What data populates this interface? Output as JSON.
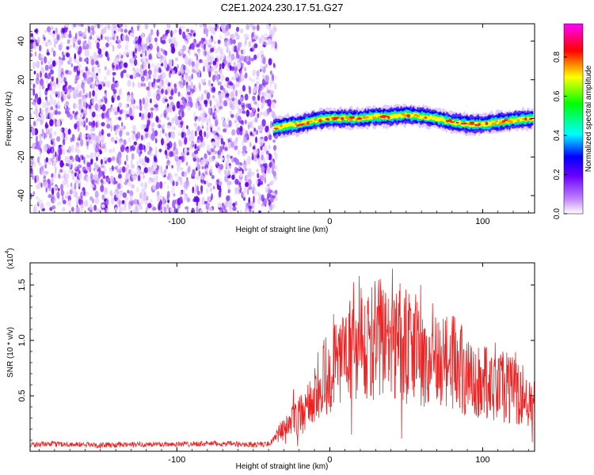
{
  "title": "C2E1.2024.230.17.51.G27",
  "chart_data": [
    {
      "type": "heatmap",
      "xlabel": "Height of straight line (km)",
      "ylabel": "Frequency (Hz)",
      "xlim": [
        -196,
        134
      ],
      "ylim": [
        -49,
        49
      ],
      "x_ticks": [
        -100,
        0,
        100
      ],
      "y_ticks": [
        -40,
        -20,
        0,
        20,
        40
      ],
      "colorbar": {
        "label": "Normalized spectral amplitude",
        "range": [
          0.0,
          0.97
        ],
        "ticks": [
          "0.0",
          "0.2",
          "0.4",
          "0.6",
          "0.8"
        ],
        "colors": [
          "#ffffff",
          "#8a00ff",
          "#0000ff",
          "#00ffff",
          "#00ff00",
          "#ffff00",
          "#ff0000",
          "#ff00ff"
        ]
      },
      "noise_region": {
        "x_start": -196,
        "x_end": -37,
        "y_start": -49,
        "y_end": 49
      },
      "signal_band": {
        "x": [
          -37,
          -30,
          -20,
          -10,
          0,
          10,
          20,
          30,
          40,
          50,
          60,
          70,
          80,
          90,
          100,
          110,
          120,
          134
        ],
        "center_hz": [
          -5,
          -4,
          -3,
          -1,
          0,
          0,
          0,
          1,
          1,
          2,
          1,
          0,
          -2,
          -3,
          -3,
          -2,
          -1,
          0
        ],
        "half_width_hz": 3
      }
    },
    {
      "type": "line",
      "xlabel": "Height of straight line (km)",
      "ylabel": "SNR (10 * v/v)",
      "y_multiplier": "(x10",
      "y_multiplier_exp": "4",
      "xlim": [
        -196,
        134
      ],
      "ylim": [
        0,
        17000
      ],
      "x_ticks": [
        -100,
        0,
        100
      ],
      "y_ticks": [
        5000,
        10000,
        15000
      ],
      "y_tick_labels": [
        "0.5",
        "1.0",
        "1.5"
      ],
      "series": [
        {
          "color": "#ee2222",
          "x": [
            -196,
            -175,
            -150,
            -125,
            -100,
            -75,
            -50,
            -40,
            -30,
            -25,
            -20,
            -15,
            -10,
            -5,
            0,
            10,
            20,
            30,
            40,
            50,
            60,
            70,
            80,
            90,
            100,
            110,
            120,
            134
          ],
          "y": [
            600,
            650,
            550,
            600,
            650,
            700,
            600,
            650,
            2000,
            2800,
            3200,
            3800,
            5000,
            6500,
            7500,
            8000,
            9500,
            10000,
            10500,
            9500,
            9000,
            8500,
            8000,
            7000,
            6500,
            6000,
            5500,
            4500
          ]
        }
      ]
    }
  ]
}
